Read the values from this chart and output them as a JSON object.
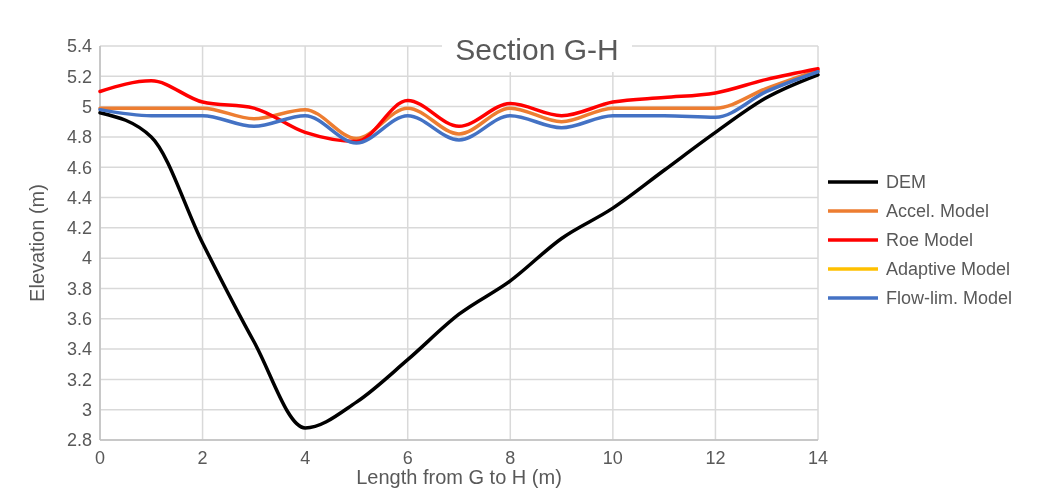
{
  "chart_data": {
    "type": "line",
    "title": "Section G-H",
    "xlabel": "Length from G to H (m)",
    "ylabel": "Elevation (m)",
    "x": [
      0,
      1,
      2,
      3,
      4,
      5,
      6,
      7,
      8,
      9,
      10,
      11,
      12,
      13,
      14
    ],
    "series": [
      {
        "name": "DEM",
        "color": "#000000",
        "values": [
          4.96,
          4.8,
          4.1,
          3.45,
          2.88,
          3.05,
          3.33,
          3.63,
          3.85,
          4.13,
          4.33,
          4.58,
          4.83,
          5.06,
          5.21
        ]
      },
      {
        "name": "Accel. Model",
        "color": "#ed7d31",
        "values": [
          4.99,
          4.99,
          4.99,
          4.92,
          4.98,
          4.79,
          4.99,
          4.82,
          4.99,
          4.9,
          4.99,
          4.99,
          4.99,
          5.12,
          5.24
        ]
      },
      {
        "name": "Roe Model",
        "color": "#ff0000",
        "values": [
          5.1,
          5.17,
          5.03,
          4.99,
          4.83,
          4.77,
          5.04,
          4.87,
          5.02,
          4.94,
          5.03,
          5.06,
          5.09,
          5.18,
          5.25
        ]
      },
      {
        "name": "Adaptive Model",
        "color": "#ffc000",
        "values": [
          null,
          null,
          null,
          null,
          null,
          null,
          null,
          null,
          null,
          null,
          null,
          null,
          null,
          null,
          null
        ]
      },
      {
        "name": "Flow-lim. Model",
        "color": "#4472c4",
        "values": [
          4.98,
          4.94,
          4.94,
          4.87,
          4.94,
          4.76,
          4.94,
          4.78,
          4.94,
          4.86,
          4.94,
          4.94,
          4.93,
          5.1,
          5.23
        ]
      }
    ],
    "xlim": [
      0,
      14
    ],
    "xticks": [
      0,
      2,
      4,
      6,
      8,
      10,
      12,
      14
    ],
    "ylim": [
      2.8,
      5.4
    ],
    "yticks": [
      2.8,
      3,
      3.2,
      3.4,
      3.6,
      3.8,
      4,
      4.2,
      4.4,
      4.6,
      4.8,
      5,
      5.2,
      5.4
    ],
    "grid": true,
    "legend": "right",
    "marker": "none",
    "line_style": "solid"
  }
}
